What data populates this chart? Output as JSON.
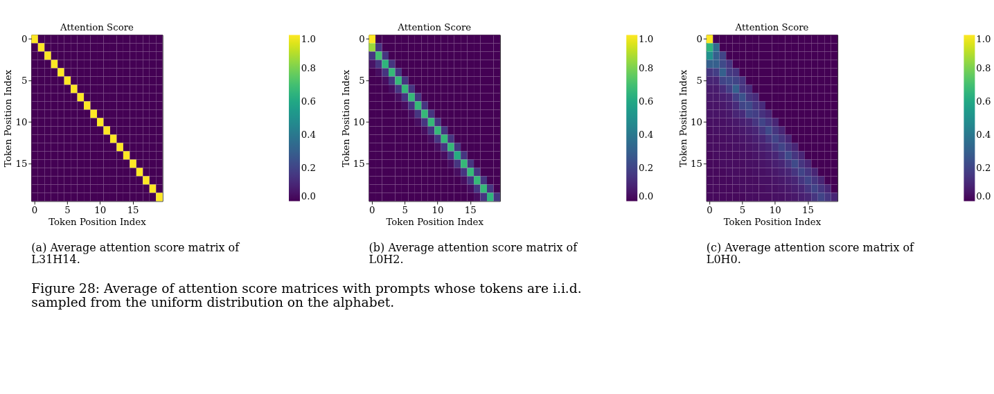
{
  "chart_data": [
    {
      "type": "heatmap",
      "title": "Attention Score",
      "xlabel": "Token Position Index",
      "ylabel": "Token Position Index",
      "categories": [
        "0",
        null,
        null,
        null,
        null,
        "5",
        null,
        null,
        null,
        null,
        "10",
        null,
        null,
        null,
        null,
        "15",
        null,
        null,
        null,
        null
      ],
      "y_categories": [
        "0",
        null,
        null,
        null,
        null,
        "5",
        null,
        null,
        null,
        null,
        "10",
        null,
        null,
        null,
        null,
        "15",
        null,
        null,
        null,
        null
      ],
      "clim": [
        0,
        1
      ],
      "cticks": [
        {
          "value": 0,
          "label": "0.0"
        },
        {
          "value": 0.2,
          "label": "0.2"
        },
        {
          "value": 0.4,
          "label": "0.4"
        },
        {
          "value": 0.6,
          "label": "0.6"
        },
        {
          "value": 0.8,
          "label": "0.8"
        },
        {
          "value": 1,
          "label": "1.0"
        }
      ],
      "annotations": [
        "(a) Average attention score matrix of\nL31H14.",
        "Figure 28: Average of attention score matrices with prompts whose tokens are i.i.d.\nsampled from the uniform distribution on the alphabet."
      ],
      "cells": [
        [
          1,
          0,
          0,
          0,
          0,
          0,
          0,
          0,
          0,
          0,
          0,
          0,
          0,
          0,
          0,
          0,
          0,
          0,
          0,
          0
        ],
        [
          0,
          1,
          0,
          0,
          0,
          0,
          0,
          0,
          0,
          0,
          0,
          0,
          0,
          0,
          0,
          0,
          0,
          0,
          0,
          0
        ],
        [
          0,
          0,
          1,
          0,
          0,
          0,
          0,
          0,
          0,
          0,
          0,
          0,
          0,
          0,
          0,
          0,
          0,
          0,
          0,
          0
        ],
        [
          0,
          0,
          0,
          1,
          0,
          0,
          0,
          0,
          0,
          0,
          0,
          0,
          0,
          0,
          0,
          0,
          0,
          0,
          0,
          0
        ],
        [
          0,
          0,
          0,
          0,
          1,
          0,
          0,
          0,
          0,
          0,
          0,
          0,
          0,
          0,
          0,
          0,
          0,
          0,
          0,
          0
        ],
        [
          0,
          0,
          0,
          0,
          0,
          1,
          0,
          0,
          0,
          0,
          0,
          0,
          0,
          0,
          0,
          0,
          0,
          0,
          0,
          0
        ],
        [
          0,
          0,
          0,
          0,
          0,
          0,
          1,
          0,
          0,
          0,
          0,
          0,
          0,
          0,
          0,
          0,
          0,
          0,
          0,
          0
        ],
        [
          0,
          0,
          0,
          0,
          0,
          0,
          0,
          1,
          0,
          0,
          0,
          0,
          0,
          0,
          0,
          0,
          0,
          0,
          0,
          0
        ],
        [
          0,
          0,
          0,
          0,
          0,
          0,
          0,
          0,
          1,
          0,
          0,
          0,
          0,
          0,
          0,
          0,
          0,
          0,
          0,
          0
        ],
        [
          0,
          0,
          0,
          0,
          0,
          0,
          0,
          0,
          0,
          1,
          0,
          0,
          0,
          0,
          0,
          0,
          0,
          0,
          0,
          0
        ],
        [
          0,
          0,
          0,
          0,
          0,
          0,
          0,
          0,
          0,
          0,
          1,
          0,
          0,
          0,
          0,
          0,
          0,
          0,
          0,
          0
        ],
        [
          0,
          0,
          0,
          0,
          0,
          0,
          0,
          0,
          0,
          0,
          0,
          1,
          0,
          0,
          0,
          0,
          0,
          0,
          0,
          0
        ],
        [
          0,
          0,
          0,
          0,
          0,
          0,
          0,
          0,
          0,
          0,
          0,
          0,
          1,
          0,
          0,
          0,
          0,
          0,
          0,
          0
        ],
        [
          0,
          0,
          0,
          0,
          0,
          0,
          0,
          0,
          0,
          0,
          0,
          0,
          0,
          1,
          0,
          0,
          0,
          0,
          0,
          0
        ],
        [
          0,
          0,
          0,
          0,
          0,
          0,
          0,
          0,
          0,
          0,
          0,
          0,
          0,
          0,
          1,
          0,
          0,
          0,
          0,
          0
        ],
        [
          0,
          0,
          0,
          0,
          0,
          0,
          0,
          0,
          0,
          0,
          0,
          0,
          0,
          0,
          0,
          1,
          0,
          0,
          0,
          0
        ],
        [
          0,
          0,
          0,
          0,
          0,
          0,
          0,
          0,
          0,
          0,
          0,
          0,
          0,
          0,
          0,
          0,
          1,
          0,
          0,
          0
        ],
        [
          0,
          0,
          0,
          0,
          0,
          0,
          0,
          0,
          0,
          0,
          0,
          0,
          0,
          0,
          0,
          0,
          0,
          1,
          0,
          0
        ],
        [
          0,
          0,
          0,
          0,
          0,
          0,
          0,
          0,
          0,
          0,
          0,
          0,
          0,
          0,
          0,
          0,
          0,
          0,
          1,
          0
        ],
        [
          0,
          0,
          0,
          0,
          0,
          0,
          0,
          0,
          0,
          0,
          0,
          0,
          0,
          0,
          0,
          0,
          0,
          0,
          0,
          1
        ]
      ]
    },
    {
      "type": "heatmap",
      "title": "Attention Score",
      "xlabel": "Token Position Index",
      "ylabel": "Token Position Index",
      "categories": [
        "0",
        null,
        null,
        null,
        null,
        "5",
        null,
        null,
        null,
        null,
        "10",
        null,
        null,
        null,
        null,
        "15",
        null,
        null,
        null,
        null
      ],
      "y_categories": [
        "0",
        null,
        null,
        null,
        null,
        "5",
        null,
        null,
        null,
        null,
        "10",
        null,
        null,
        null,
        null,
        "15",
        null,
        null,
        null,
        null
      ],
      "clim": [
        0,
        1
      ],
      "cticks": [
        {
          "value": 0,
          "label": "0.0"
        },
        {
          "value": 0.2,
          "label": "0.2"
        },
        {
          "value": 0.4,
          "label": "0.4"
        },
        {
          "value": 0.6,
          "label": "0.6"
        },
        {
          "value": 0.8,
          "label": "0.8"
        },
        {
          "value": 1,
          "label": "1.0"
        }
      ],
      "annotations": [
        "(b) Average attention score matrix of\nL0H2."
      ],
      "cells": [
        [
          1,
          0,
          0,
          0,
          0,
          0,
          0,
          0,
          0,
          0,
          0,
          0,
          0,
          0,
          0,
          0,
          0,
          0,
          0,
          0
        ],
        [
          0.85,
          0.15,
          0,
          0,
          0,
          0,
          0,
          0,
          0,
          0,
          0,
          0,
          0,
          0,
          0,
          0,
          0,
          0,
          0,
          0
        ],
        [
          0.15,
          0.7,
          0.15,
          0,
          0,
          0,
          0,
          0,
          0,
          0,
          0,
          0,
          0,
          0,
          0,
          0,
          0,
          0,
          0,
          0
        ],
        [
          0.05,
          0.15,
          0.65,
          0.15,
          0,
          0,
          0,
          0,
          0,
          0,
          0,
          0,
          0,
          0,
          0,
          0,
          0,
          0,
          0,
          0
        ],
        [
          0,
          0.03,
          0.15,
          0.67,
          0.15,
          0,
          0,
          0,
          0,
          0,
          0,
          0,
          0,
          0,
          0,
          0,
          0,
          0,
          0,
          0
        ],
        [
          0,
          0,
          0.03,
          0.15,
          0.67,
          0.15,
          0,
          0,
          0,
          0,
          0,
          0,
          0,
          0,
          0,
          0,
          0,
          0,
          0,
          0
        ],
        [
          0,
          0,
          0,
          0.03,
          0.15,
          0.67,
          0.15,
          0,
          0,
          0,
          0,
          0,
          0,
          0,
          0,
          0,
          0,
          0,
          0,
          0
        ],
        [
          0,
          0,
          0,
          0,
          0.03,
          0.15,
          0.67,
          0.15,
          0,
          0,
          0,
          0,
          0,
          0,
          0,
          0,
          0,
          0,
          0,
          0
        ],
        [
          0,
          0,
          0,
          0,
          0,
          0.03,
          0.15,
          0.67,
          0.15,
          0,
          0,
          0,
          0,
          0,
          0,
          0,
          0,
          0,
          0,
          0
        ],
        [
          0,
          0,
          0,
          0,
          0,
          0,
          0.03,
          0.15,
          0.67,
          0.15,
          0,
          0,
          0,
          0,
          0,
          0,
          0,
          0,
          0,
          0
        ],
        [
          0,
          0,
          0,
          0,
          0,
          0,
          0,
          0.03,
          0.15,
          0.67,
          0.15,
          0,
          0,
          0,
          0,
          0,
          0,
          0,
          0,
          0
        ],
        [
          0,
          0,
          0,
          0,
          0,
          0,
          0,
          0,
          0.03,
          0.15,
          0.67,
          0.15,
          0,
          0,
          0,
          0,
          0,
          0,
          0,
          0
        ],
        [
          0,
          0,
          0,
          0,
          0,
          0,
          0,
          0,
          0,
          0.03,
          0.15,
          0.67,
          0.15,
          0,
          0,
          0,
          0,
          0,
          0,
          0
        ],
        [
          0,
          0,
          0,
          0,
          0,
          0,
          0,
          0,
          0,
          0,
          0.03,
          0.15,
          0.67,
          0.15,
          0,
          0,
          0,
          0,
          0,
          0
        ],
        [
          0,
          0,
          0,
          0,
          0,
          0,
          0,
          0,
          0,
          0,
          0,
          0.03,
          0.15,
          0.62,
          0.15,
          0,
          0,
          0,
          0,
          0
        ],
        [
          0,
          0,
          0,
          0,
          0,
          0,
          0,
          0,
          0,
          0,
          0,
          0,
          0.03,
          0.15,
          0.67,
          0.15,
          0,
          0,
          0,
          0
        ],
        [
          0,
          0,
          0,
          0,
          0,
          0,
          0,
          0,
          0,
          0,
          0,
          0,
          0,
          0.03,
          0.15,
          0.67,
          0.15,
          0,
          0,
          0
        ],
        [
          0,
          0,
          0,
          0,
          0,
          0,
          0,
          0,
          0,
          0,
          0,
          0,
          0,
          0,
          0.03,
          0.15,
          0.67,
          0.15,
          0,
          0
        ],
        [
          0,
          0,
          0,
          0,
          0,
          0,
          0,
          0,
          0,
          0,
          0,
          0,
          0,
          0,
          0,
          0.03,
          0.15,
          0.67,
          0.15,
          0
        ],
        [
          0,
          0,
          0,
          0,
          0,
          0,
          0,
          0,
          0,
          0,
          0,
          0,
          0,
          0,
          0,
          0,
          0.03,
          0.15,
          0.65,
          0.15
        ]
      ]
    },
    {
      "type": "heatmap",
      "title": "Attention Score",
      "xlabel": "Token Position Index",
      "ylabel": "Token Position Index",
      "categories": [
        "0",
        null,
        null,
        null,
        null,
        "5",
        null,
        null,
        null,
        null,
        "10",
        null,
        null,
        null,
        null,
        "15",
        null,
        null,
        null,
        null
      ],
      "y_categories": [
        "0",
        null,
        null,
        null,
        null,
        "5",
        null,
        null,
        null,
        null,
        "10",
        null,
        null,
        null,
        null,
        "15",
        null,
        null,
        null,
        null
      ],
      "clim": [
        0,
        1
      ],
      "cticks": [
        {
          "value": 0,
          "label": "0.0"
        },
        {
          "value": 0.2,
          "label": "0.2"
        },
        {
          "value": 0.4,
          "label": "0.4"
        },
        {
          "value": 0.6,
          "label": "0.6"
        },
        {
          "value": 0.8,
          "label": "0.8"
        },
        {
          "value": 1,
          "label": "1.0"
        }
      ],
      "annotations": [
        "(c) Average attention score matrix of\nL0H0."
      ],
      "cells": [
        [
          1,
          0,
          0,
          0,
          0,
          0,
          0,
          0,
          0,
          0,
          0,
          0,
          0,
          0,
          0,
          0,
          0,
          0,
          0,
          0
        ],
        [
          0.65,
          0.35,
          0,
          0,
          0,
          0,
          0,
          0,
          0,
          0,
          0,
          0,
          0,
          0,
          0,
          0,
          0,
          0,
          0,
          0
        ],
        [
          0.5,
          0.3,
          0.2,
          0,
          0,
          0,
          0,
          0,
          0,
          0,
          0,
          0,
          0,
          0,
          0,
          0,
          0,
          0,
          0,
          0
        ],
        [
          0.3,
          0.3,
          0.22,
          0.15,
          0,
          0,
          0,
          0,
          0,
          0,
          0,
          0,
          0,
          0,
          0,
          0,
          0,
          0,
          0,
          0
        ],
        [
          0.15,
          0.18,
          0.3,
          0.17,
          0.15,
          0,
          0,
          0,
          0,
          0,
          0,
          0,
          0,
          0,
          0,
          0,
          0,
          0,
          0,
          0
        ],
        [
          0.1,
          0.1,
          0.2,
          0.22,
          0.2,
          0.15,
          0,
          0,
          0,
          0,
          0,
          0,
          0,
          0,
          0,
          0,
          0,
          0,
          0,
          0
        ],
        [
          0.07,
          0.07,
          0.12,
          0.18,
          0.3,
          0.15,
          0.12,
          0,
          0,
          0,
          0,
          0,
          0,
          0,
          0,
          0,
          0,
          0,
          0,
          0
        ],
        [
          0.06,
          0.06,
          0.08,
          0.1,
          0.18,
          0.25,
          0.15,
          0.12,
          0,
          0,
          0,
          0,
          0,
          0,
          0,
          0,
          0,
          0,
          0,
          0
        ],
        [
          0.05,
          0.05,
          0.06,
          0.08,
          0.12,
          0.2,
          0.22,
          0.15,
          0.12,
          0,
          0,
          0,
          0,
          0,
          0,
          0,
          0,
          0,
          0,
          0
        ],
        [
          0.05,
          0.05,
          0.05,
          0.06,
          0.1,
          0.12,
          0.2,
          0.18,
          0.14,
          0.1,
          0,
          0,
          0,
          0,
          0,
          0,
          0,
          0,
          0,
          0
        ],
        [
          0.04,
          0.04,
          0.04,
          0.05,
          0.06,
          0.08,
          0.1,
          0.15,
          0.2,
          0.15,
          0.1,
          0,
          0,
          0,
          0,
          0,
          0,
          0,
          0,
          0
        ],
        [
          0.03,
          0.04,
          0.04,
          0.04,
          0.05,
          0.06,
          0.08,
          0.1,
          0.15,
          0.22,
          0.15,
          0.1,
          0,
          0,
          0,
          0,
          0,
          0,
          0,
          0
        ],
        [
          0.03,
          0.03,
          0.03,
          0.04,
          0.04,
          0.05,
          0.06,
          0.08,
          0.1,
          0.15,
          0.2,
          0.15,
          0.1,
          0,
          0,
          0,
          0,
          0,
          0,
          0
        ],
        [
          0.03,
          0.03,
          0.03,
          0.03,
          0.04,
          0.04,
          0.05,
          0.06,
          0.08,
          0.1,
          0.15,
          0.2,
          0.15,
          0.1,
          0,
          0,
          0,
          0,
          0,
          0
        ],
        [
          0.02,
          0.03,
          0.03,
          0.03,
          0.03,
          0.04,
          0.04,
          0.05,
          0.06,
          0.08,
          0.1,
          0.15,
          0.22,
          0.15,
          0.1,
          0,
          0,
          0,
          0,
          0
        ],
        [
          0.02,
          0.02,
          0.03,
          0.03,
          0.03,
          0.03,
          0.04,
          0.04,
          0.05,
          0.06,
          0.08,
          0.1,
          0.15,
          0.22,
          0.15,
          0.1,
          0,
          0,
          0,
          0
        ],
        [
          0.02,
          0.02,
          0.02,
          0.03,
          0.03,
          0.03,
          0.03,
          0.04,
          0.04,
          0.05,
          0.06,
          0.08,
          0.1,
          0.15,
          0.2,
          0.15,
          0.1,
          0,
          0,
          0
        ],
        [
          0.02,
          0.02,
          0.02,
          0.02,
          0.03,
          0.03,
          0.03,
          0.03,
          0.04,
          0.04,
          0.05,
          0.06,
          0.08,
          0.1,
          0.15,
          0.2,
          0.15,
          0.1,
          0,
          0
        ],
        [
          0.02,
          0.02,
          0.02,
          0.02,
          0.02,
          0.03,
          0.03,
          0.03,
          0.03,
          0.04,
          0.04,
          0.05,
          0.06,
          0.08,
          0.1,
          0.15,
          0.2,
          0.15,
          0.1,
          0
        ],
        [
          0.02,
          0.02,
          0.02,
          0.02,
          0.02,
          0.02,
          0.03,
          0.03,
          0.03,
          0.03,
          0.04,
          0.04,
          0.05,
          0.06,
          0.08,
          0.1,
          0.15,
          0.2,
          0.15,
          0.1
        ]
      ]
    }
  ]
}
